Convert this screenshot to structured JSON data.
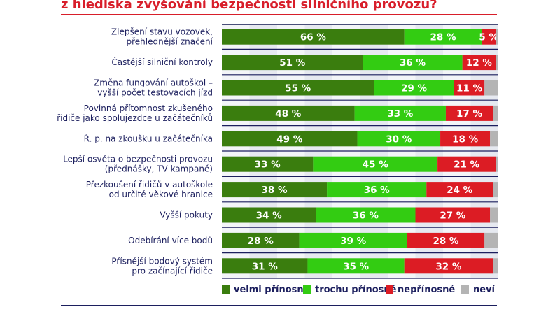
{
  "header": {
    "title": "z hlediska zvyšování bezpečnosti silničního provozu?"
  },
  "chart_data": {
    "type": "bar",
    "orientation": "horizontal",
    "stacked": true,
    "categories": [
      [
        "Zlepšení stavu vozovek,",
        "přehlednější značení"
      ],
      [
        "Častější silniční kontroly"
      ],
      [
        "Změna fungování autoškol –",
        "vyšší počet testovacích jízd"
      ],
      [
        "Povinná přítomnost zkušeného",
        "řidiče jako spolujezdce u začátečníků"
      ],
      [
        "Ř. p. na zkoušku u začátečníka"
      ],
      [
        "Lepší osvěta o bezpečnosti provozu",
        "(přednášky, TV kampaně)"
      ],
      [
        "Přezkoušení řidičů v autoškole",
        "od určité věkové hranice"
      ],
      [
        "Vyšší pokuty"
      ],
      [
        "Odebírání více bodů"
      ],
      [
        "Přísnější bodový systém",
        "pro začínající řidiče"
      ]
    ],
    "series": [
      {
        "name": "velmi přínosné",
        "color": "#3a7d0e",
        "values": [
          66,
          51,
          55,
          48,
          49,
          33,
          38,
          34,
          28,
          31
        ]
      },
      {
        "name": "trochu přínosné",
        "color": "#33cc12",
        "values": [
          28,
          36,
          29,
          33,
          30,
          45,
          36,
          36,
          39,
          35
        ]
      },
      {
        "name": "nepřínosné",
        "color": "#dc1c24",
        "values": [
          5,
          12,
          11,
          17,
          18,
          21,
          24,
          27,
          28,
          32
        ]
      },
      {
        "name": "neví",
        "color": "#b4b4b4",
        "values": [
          1,
          1,
          5,
          2,
          3,
          1,
          2,
          3,
          5,
          2
        ]
      }
    ],
    "value_suffix": " %",
    "xlim": [
      0,
      100
    ],
    "grid": "alternating vertical bands",
    "legend": "bottom-right"
  }
}
